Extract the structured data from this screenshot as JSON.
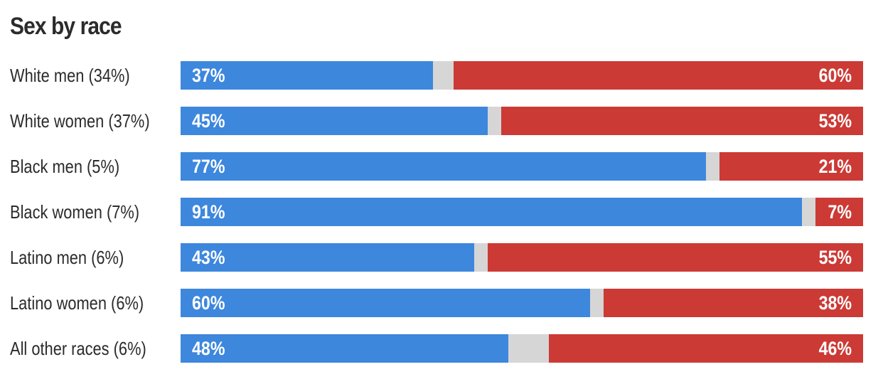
{
  "chart_data": {
    "type": "bar",
    "orientation": "horizontal-stacked",
    "title": "Sex by race",
    "categories": [
      "White men (34%)",
      "White women (37%)",
      "Black men (5%)",
      "Black women (7%)",
      "Latino men (6%)",
      "Latino women (6%)",
      "All other races (6%)"
    ],
    "series": [
      {
        "color": "#3d87dd",
        "values": [
          37,
          45,
          77,
          91,
          43,
          60,
          48
        ],
        "labels": [
          "37%",
          "45%",
          "77%",
          "91%",
          "43%",
          "60%",
          "48%"
        ]
      },
      {
        "color": "#cc3a35",
        "values": [
          60,
          53,
          21,
          7,
          55,
          38,
          46
        ],
        "labels": [
          "60%",
          "53%",
          "21%",
          "7%",
          "55%",
          "38%",
          "46%"
        ]
      }
    ],
    "remainder_color": "#d6d6d6",
    "xlim": [
      0,
      100
    ],
    "grid": false,
    "legend": "none"
  }
}
